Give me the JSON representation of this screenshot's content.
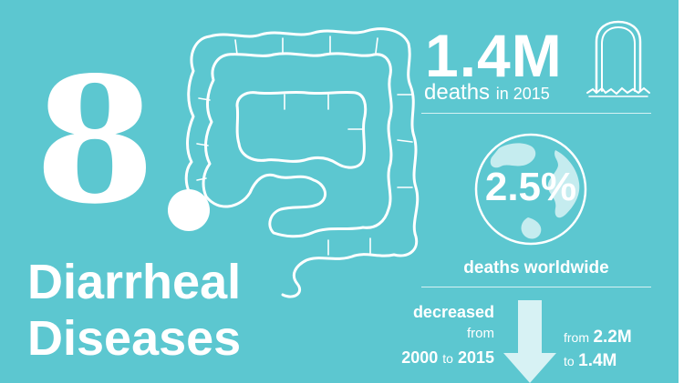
{
  "rank": "8",
  "title": {
    "line1": "Diarrheal",
    "line2": "Diseases"
  },
  "deaths": {
    "value": "1.4M",
    "label": "deaths",
    "period": "in 2015"
  },
  "share": {
    "value": "2.5%",
    "label": "deaths worldwide"
  },
  "trend": {
    "line1": "decreased",
    "line2": "from",
    "start_year": "2000",
    "to_word": "to",
    "end_year": "2015",
    "from_word": "from",
    "start_value": "2.2M",
    "to_word_2": "to",
    "end_value": "1.4M"
  },
  "icons": {
    "illustration": "intestine-icon",
    "deaths": "tombstone-icon",
    "share": "globe-icon",
    "trend": "down-arrow-icon"
  },
  "colors": {
    "background": "#5cc7d0",
    "foreground": "#ffffff",
    "accent_light": "#d7f2f4"
  }
}
